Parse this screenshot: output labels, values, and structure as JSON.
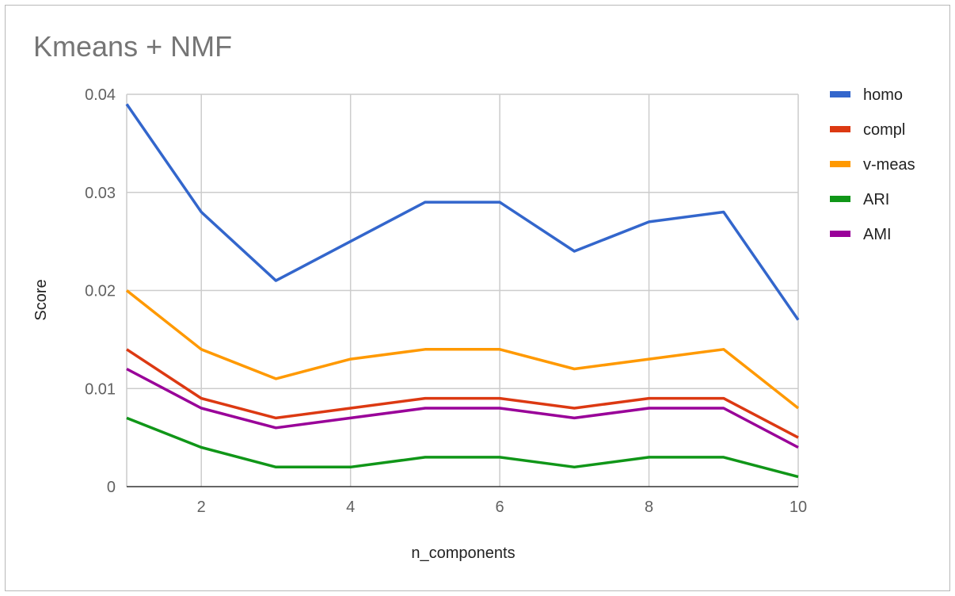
{
  "chart_data": {
    "type": "line",
    "title": "Kmeans + NMF",
    "xlabel": "n_components",
    "ylabel": "Score",
    "x": [
      1,
      2,
      3,
      4,
      5,
      6,
      7,
      8,
      9,
      10
    ],
    "xlim": [
      1,
      10
    ],
    "ylim": [
      0,
      0.04
    ],
    "xticks": [
      "2",
      "4",
      "6",
      "8",
      "10"
    ],
    "yticks": [
      "0",
      "0.01",
      "0.02",
      "0.03",
      "0.04"
    ],
    "grid": true,
    "legend_position": "right",
    "series": [
      {
        "name": "homo",
        "color": "#3366cc",
        "values": [
          0.039,
          0.028,
          0.021,
          0.025,
          0.029,
          0.029,
          0.024,
          0.027,
          0.028,
          0.017
        ]
      },
      {
        "name": "compl",
        "color": "#dc3912",
        "values": [
          0.014,
          0.009,
          0.007,
          0.008,
          0.009,
          0.009,
          0.008,
          0.009,
          0.009,
          0.005
        ]
      },
      {
        "name": "v-meas",
        "color": "#ff9900",
        "values": [
          0.02,
          0.014,
          0.011,
          0.013,
          0.014,
          0.014,
          0.012,
          0.013,
          0.014,
          0.008
        ]
      },
      {
        "name": "ARI",
        "color": "#109618",
        "values": [
          0.007,
          0.004,
          0.002,
          0.002,
          0.003,
          0.003,
          0.002,
          0.003,
          0.003,
          0.001
        ]
      },
      {
        "name": "AMI",
        "color": "#990099",
        "values": [
          0.012,
          0.008,
          0.006,
          0.007,
          0.008,
          0.008,
          0.007,
          0.008,
          0.008,
          0.004
        ]
      }
    ]
  }
}
